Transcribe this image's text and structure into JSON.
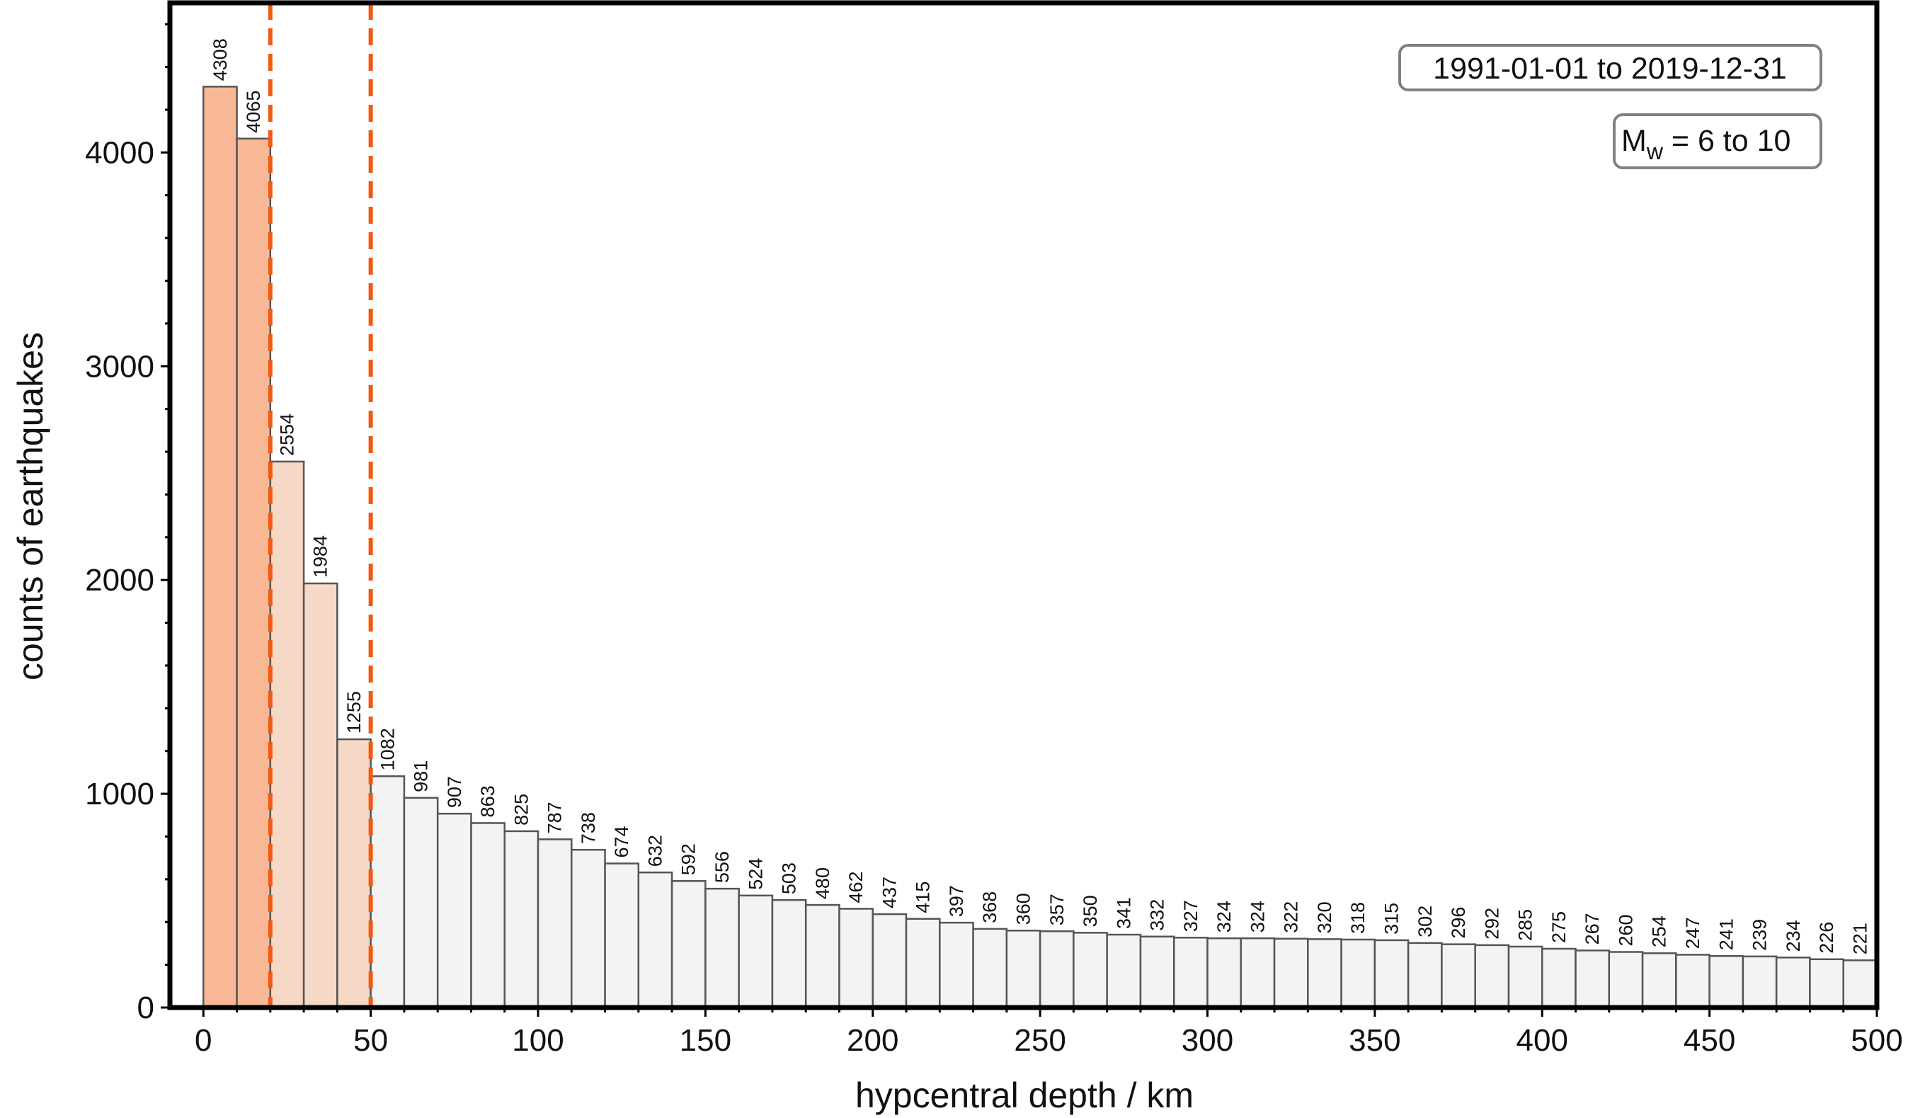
{
  "chart_data": {
    "type": "bar",
    "title": "",
    "xlabel": "hypcentral depth / km",
    "ylabel": "counts of earthquakes",
    "xlim": [
      -10,
      500
    ],
    "ylim": [
      0,
      4700
    ],
    "bin_width_km": 10,
    "x": [
      0,
      10,
      20,
      30,
      40,
      50,
      60,
      70,
      80,
      90,
      100,
      110,
      120,
      130,
      140,
      150,
      160,
      170,
      180,
      190,
      200,
      210,
      220,
      230,
      240,
      250,
      260,
      270,
      280,
      290,
      300,
      310,
      320,
      330,
      340,
      350,
      360,
      370,
      380,
      390,
      400,
      410,
      420,
      430,
      440,
      450,
      460,
      470,
      480,
      490
    ],
    "values": [
      4308,
      4065,
      2554,
      1984,
      1255,
      1082,
      981,
      907,
      863,
      825,
      787,
      738,
      674,
      632,
      592,
      556,
      524,
      503,
      480,
      462,
      437,
      415,
      397,
      368,
      360,
      357,
      350,
      341,
      332,
      327,
      324,
      324,
      322,
      320,
      318,
      315,
      302,
      296,
      292,
      285,
      275,
      267,
      260,
      254,
      247,
      241,
      239,
      234,
      226,
      221
    ],
    "xticks": [
      0,
      50,
      100,
      150,
      200,
      250,
      300,
      350,
      400,
      450,
      500
    ],
    "yticks": [
      0,
      1000,
      2000,
      3000,
      4000
    ],
    "reference_lines_km": [
      20,
      50
    ],
    "depth_bands": [
      {
        "from_km": 0,
        "to_km": 20,
        "color": "#f8b896"
      },
      {
        "from_km": 20,
        "to_km": 50,
        "color": "#f6d8c6"
      },
      {
        "from_km": 50,
        "to_km": 500,
        "color": "#f3f3f3"
      }
    ],
    "reference_line_color": "#f05a12",
    "annotations": {
      "date_range": "1991-01-01 to 2019-12-31",
      "magnitude": {
        "main": "M",
        "subscript": "w",
        "rest": " = 6 to 10"
      }
    },
    "legend": "top-right",
    "grid": false
  }
}
